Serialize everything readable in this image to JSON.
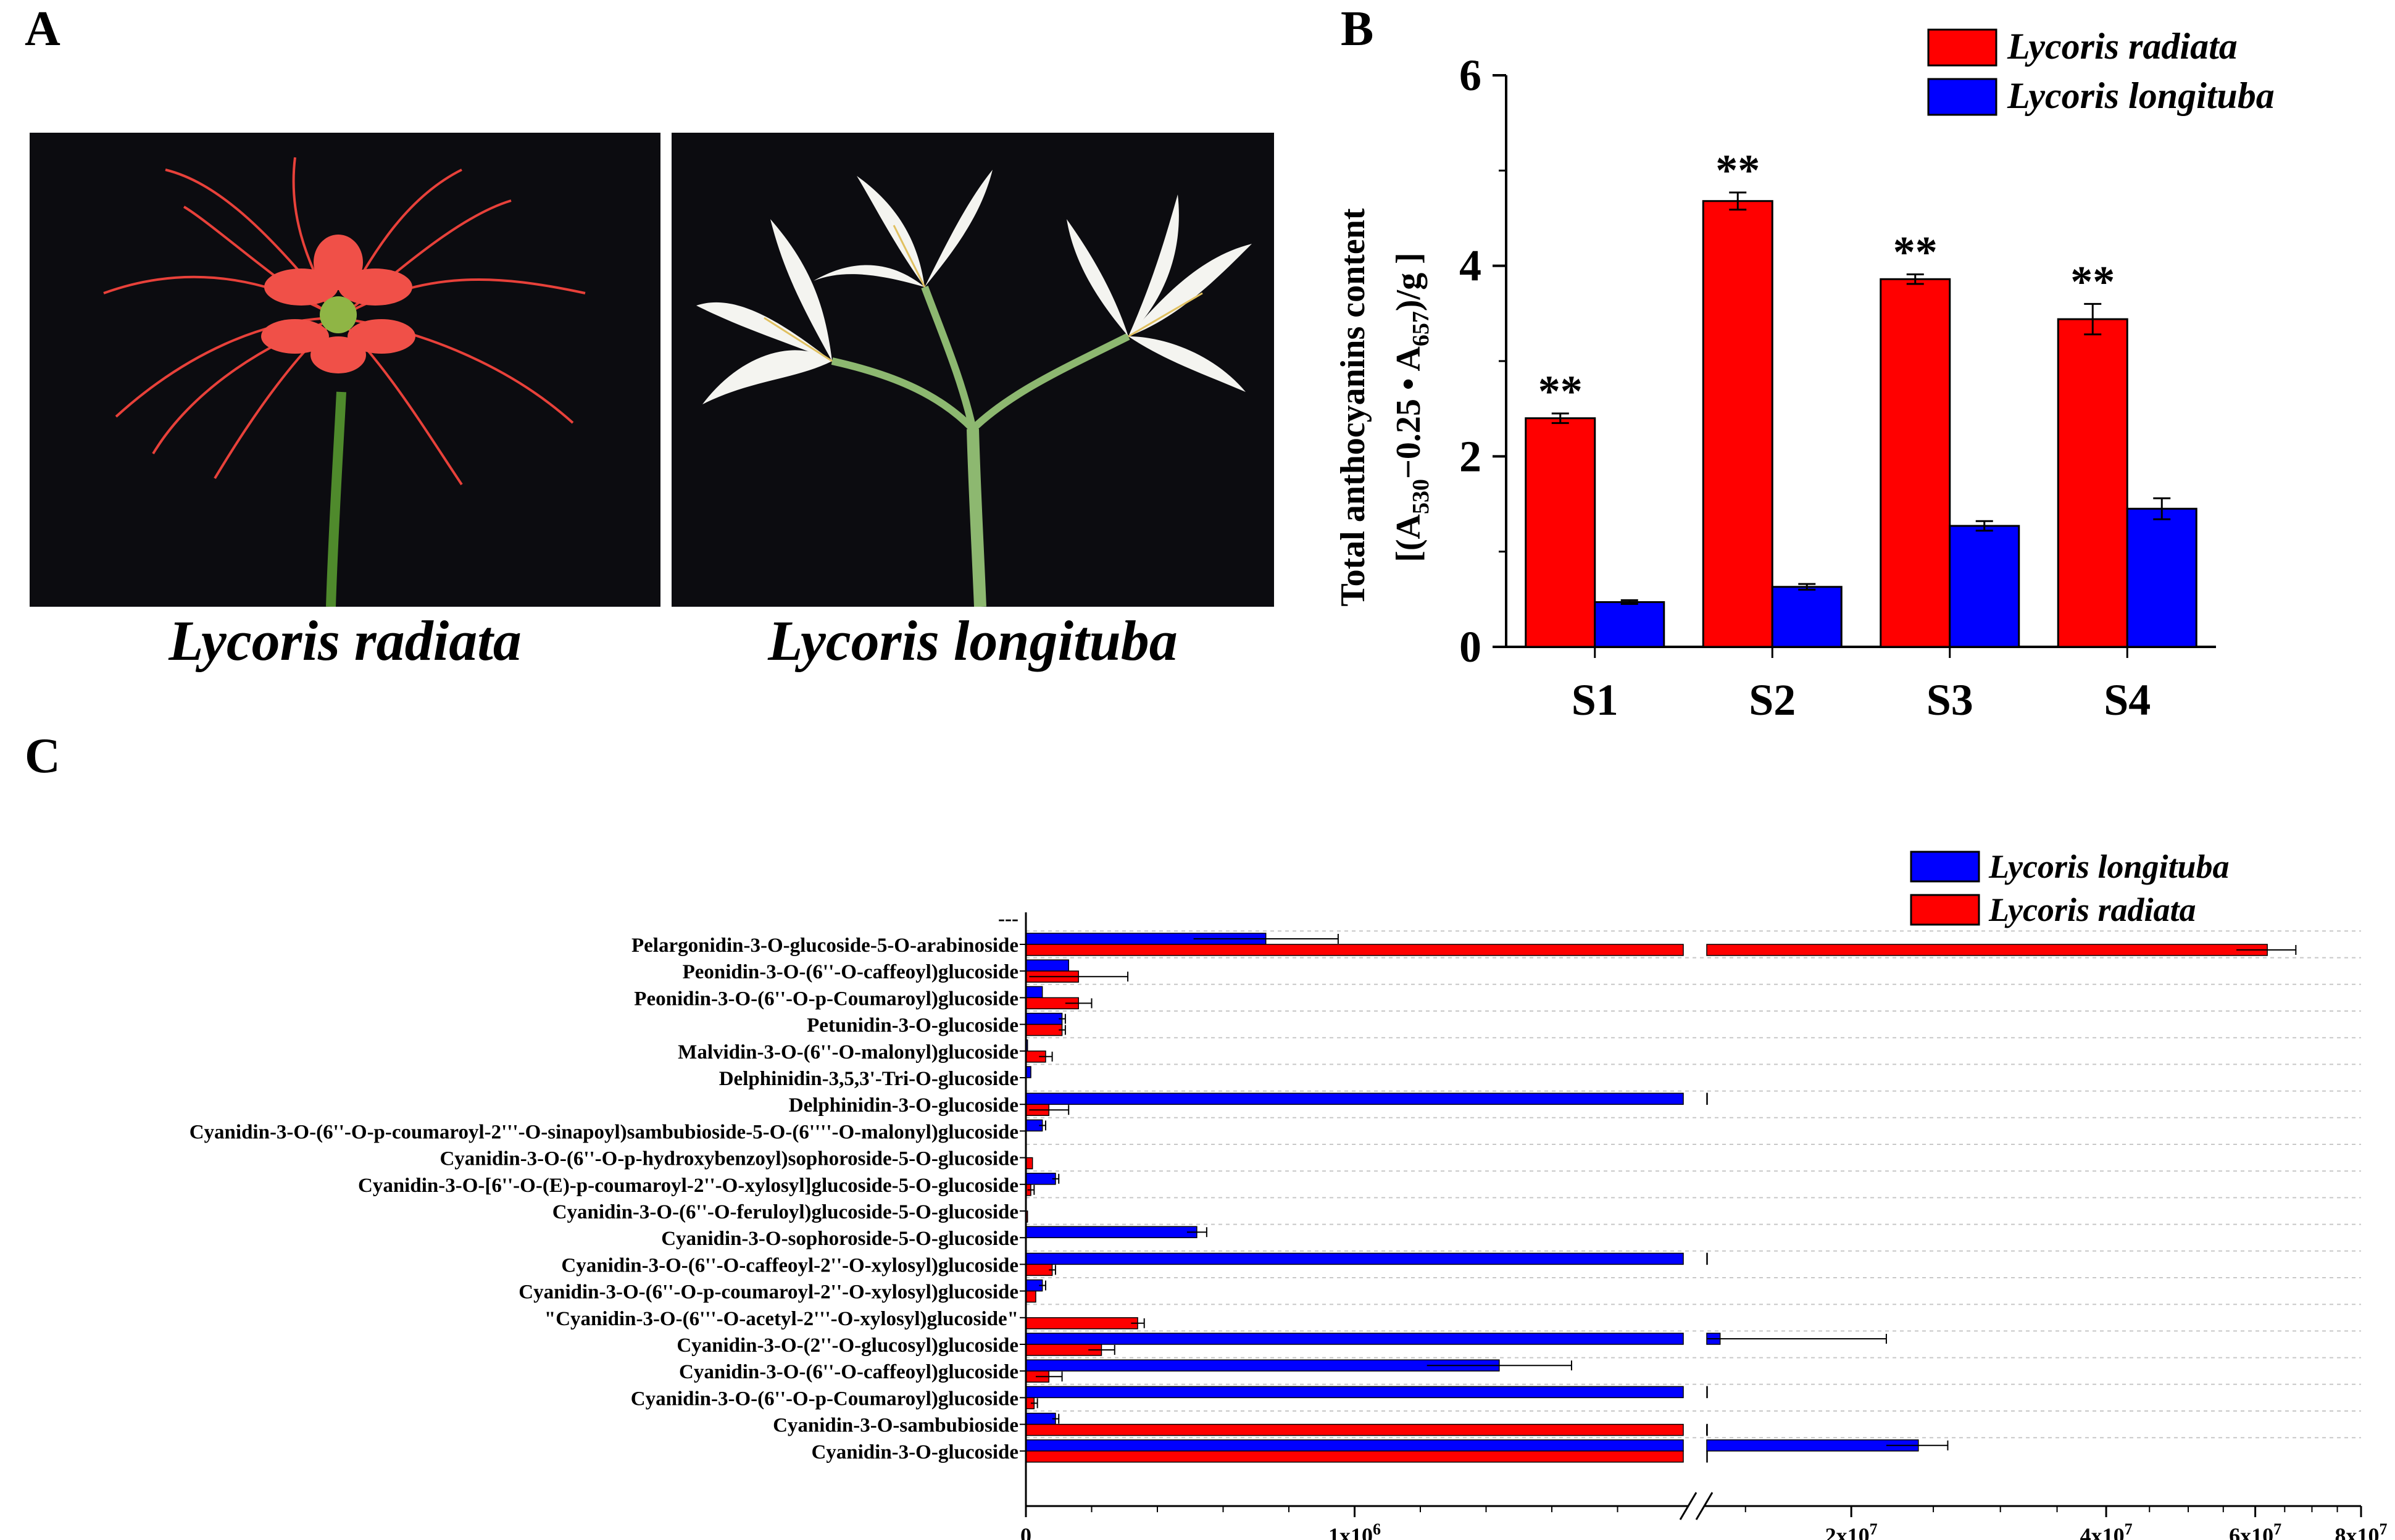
{
  "panels": {
    "a": "A",
    "b": "B",
    "c": "C"
  },
  "photos": [
    {
      "caption": "Lycoris radiata",
      "subject": "red-spider-lily-flower"
    },
    {
      "caption": "Lycoris longituba",
      "subject": "white-lily-flower"
    }
  ],
  "colors": {
    "red": "#ff0000",
    "blue": "#0000ff",
    "photo_bg": "#0c0c10"
  },
  "chart_data": [
    {
      "type": "bar",
      "title": "",
      "ylabel_line1": "Total anthocyanins content",
      "ylabel_line2_parts": [
        "[(A",
        "530",
        "−0.25 • A",
        "657",
        ")/g ]"
      ],
      "xlabel": "",
      "categories": [
        "S1",
        "S2",
        "S3",
        "S4"
      ],
      "yticks": [
        "0",
        "2",
        "4",
        "6"
      ],
      "ylim": [
        0,
        6
      ],
      "legend_position": "top-right",
      "significance": [
        "**",
        "**",
        "**",
        "**"
      ],
      "series": [
        {
          "name": "Lycoris radiata",
          "color": "#ff0000",
          "values": [
            2.4,
            4.68,
            3.86,
            3.44
          ],
          "errors": [
            0.05,
            0.09,
            0.05,
            0.16
          ]
        },
        {
          "name": "Lycoris longituba",
          "color": "#0000ff",
          "values": [
            0.47,
            0.63,
            1.27,
            1.45
          ],
          "errors": [
            0.02,
            0.03,
            0.05,
            0.11
          ]
        }
      ]
    },
    {
      "type": "bar",
      "orientation": "horizontal",
      "title": "",
      "xlabel": "",
      "ylabel": "",
      "axis_break": true,
      "top_tick_label": "---",
      "xticks": [
        "0",
        "1x10^6",
        "2x10^7",
        "4x10^7",
        "6x10^7",
        "8x10^7"
      ],
      "legend_position": "top-right",
      "categories": [
        "Pelargonidin-3-O-glucoside-5-O-arabinoside",
        "Peonidin-3-O-(6''-O-caffeoyl)glucoside",
        "Peonidin-3-O-(6''-O-p-Coumaroyl)glucoside",
        "Petunidin-3-O-glucoside",
        "Malvidin-3-O-(6''-O-malonyl)glucoside",
        "Delphinidin-3,5,3'-Tri-O-glucoside",
        "Delphinidin-3-O-glucoside",
        "Cyanidin-3-O-(6''-O-p-coumaroyl-2'''-O-sinapoyl)sambubioside-5-O-(6''''-O-malonyl)glucoside",
        "Cyanidin-3-O-(6''-O-p-hydroxybenzoyl)sophoroside-5-O-glucoside",
        "Cyanidin-3-O-[6''-O-(E)-p-coumaroyl-2''-O-xylosyl]glucoside-5-O-glucoside",
        "Cyanidin-3-O-(6''-O-feruloyl)glucoside-5-O-glucoside",
        "Cyanidin-3-O-sophoroside-5-O-glucoside",
        "Cyanidin-3-O-(6''-O-caffeoyl-2''-O-xylosyl)glucoside",
        "Cyanidin-3-O-(6''-O-p-coumaroyl-2''-O-xylosyl)glucoside",
        "\"Cyanidin-3-O-(6'''-O-acetyl-2'''-O-xylosyl)glucoside\"",
        "Cyanidin-3-O-(2''-O-glucosyl)glucoside",
        "Cyanidin-3-O-(6''-O-caffeoyl)glucoside",
        "Cyanidin-3-O-(6''-O-p-Coumaroyl)glucoside",
        "Cyanidin-3-O-sambubioside",
        "Cyanidin-3-O-glucoside"
      ],
      "series": [
        {
          "name": "Lycoris longituba",
          "color": "#0000ff",
          "values": [
            730000,
            130000,
            50000,
            110000,
            5000,
            15000,
            5000000,
            50000,
            0,
            90000,
            0,
            520000,
            4000000,
            50000,
            0,
            14000000,
            1440000,
            3000000,
            90000,
            24000000
          ],
          "errors": [
            220000,
            0,
            0,
            10000,
            0,
            0,
            0,
            10000,
            0,
            10000,
            0,
            30000,
            0,
            10000,
            0,
            8000000,
            220000,
            0,
            10000,
            2000000
          ]
        },
        {
          "name": "Lycoris radiata",
          "color": "#ff0000",
          "values": [
            62000000,
            160000,
            160000,
            110000,
            60000,
            0,
            70000,
            0,
            20000,
            15000,
            5000,
            0,
            80000,
            30000,
            340000,
            230000,
            70000,
            25000,
            11000000,
            2200000
          ],
          "errors": [
            5000000,
            150000,
            40000,
            10000,
            20000,
            0,
            60000,
            0,
            0,
            10000,
            0,
            0,
            10000,
            0,
            20000,
            40000,
            40000,
            10000,
            1000000,
            0
          ]
        }
      ]
    }
  ]
}
